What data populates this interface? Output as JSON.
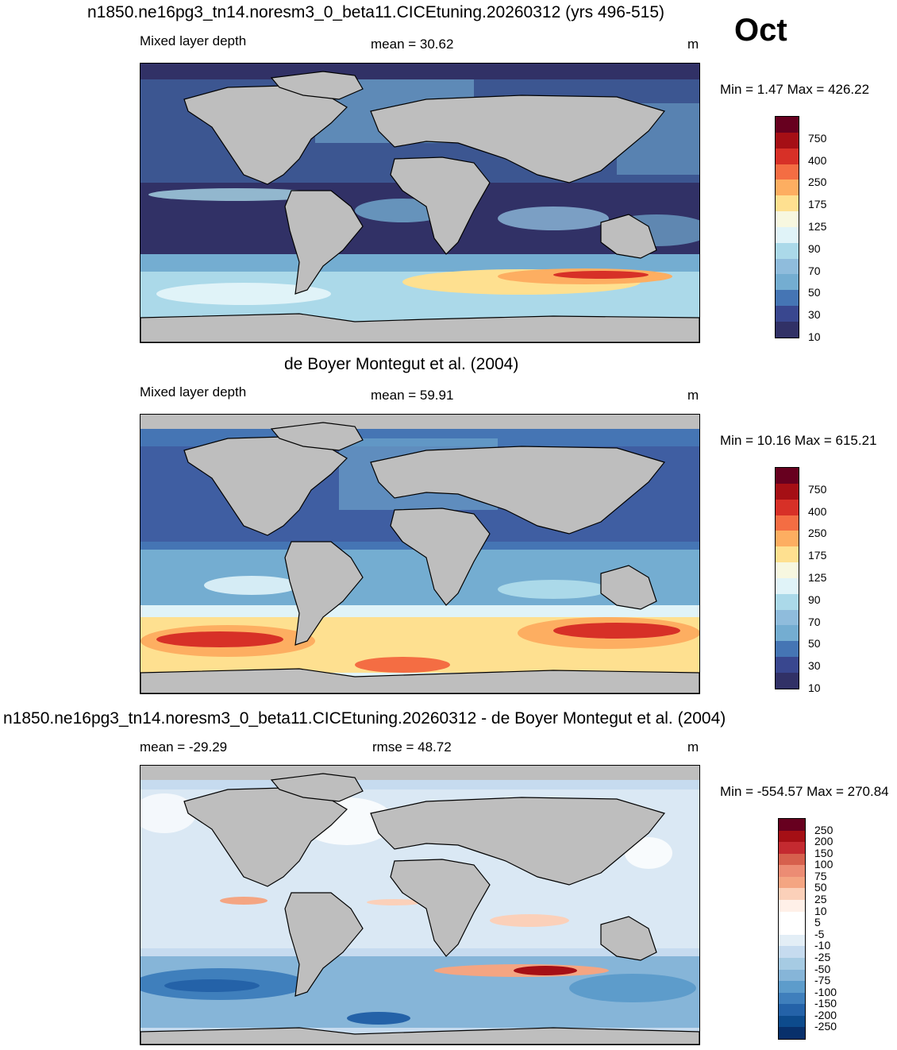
{
  "header": {
    "title": "n1850.ne16pg3_tn14.noresm3_0_beta11.CICEtuning.20260312 (yrs 496-515)",
    "month": "Oct"
  },
  "panels": [
    {
      "title": "",
      "left_label": "Mixed layer depth",
      "center_label": "mean =  30.62",
      "units": "m",
      "minmax": "Min =   1.47 Max = 426.22",
      "colorbar_labels": [
        "750",
        "400",
        "250",
        "175",
        "125",
        "90",
        "70",
        "50",
        "30",
        "10"
      ]
    },
    {
      "title": "de Boyer Montegut et al. (2004)",
      "left_label": "Mixed layer depth",
      "center_label": "mean =  59.91",
      "units": "m",
      "minmax": "Min =  10.16 Max = 615.21",
      "colorbar_labels": [
        "750",
        "400",
        "250",
        "175",
        "125",
        "90",
        "70",
        "50",
        "30",
        "10"
      ]
    },
    {
      "title": "n1850.ne16pg3_tn14.noresm3_0_beta11.CICEtuning.20260312 - de Boyer Montegut et al. (2004)",
      "left_label": "mean = -29.29",
      "center_label": "rmse =  48.72",
      "units": "m",
      "minmax": "Min = -554.57 Max = 270.84",
      "colorbar_labels": [
        "250",
        "200",
        "150",
        "100",
        "75",
        "50",
        "25",
        "10",
        "5",
        "-5",
        "-10",
        "-25",
        "-50",
        "-75",
        "-100",
        "-150",
        "-200",
        "-250"
      ]
    }
  ],
  "colors": {
    "land": "#bebebe",
    "seq_palette": [
      "#67001f",
      "#a50f15",
      "#d73027",
      "#f46d43",
      "#fdae61",
      "#fee090",
      "#f7f7e0",
      "#e0f3f8",
      "#abd9e9",
      "#8fbcdc",
      "#74add1",
      "#4575b4",
      "#39478f",
      "#313166"
    ],
    "div_palette": [
      "#67001f",
      "#a50f15",
      "#c42a30",
      "#d6604d",
      "#ec8c74",
      "#f4a582",
      "#fbd0b9",
      "#fff0e8",
      "#ffffff",
      "#ffffff",
      "#e3eef6",
      "#c6dbef",
      "#a6cbe3",
      "#86b5d8",
      "#5d9ccb",
      "#3f7fbc",
      "#2462a8",
      "#0d4b8c",
      "#08306b"
    ]
  }
}
